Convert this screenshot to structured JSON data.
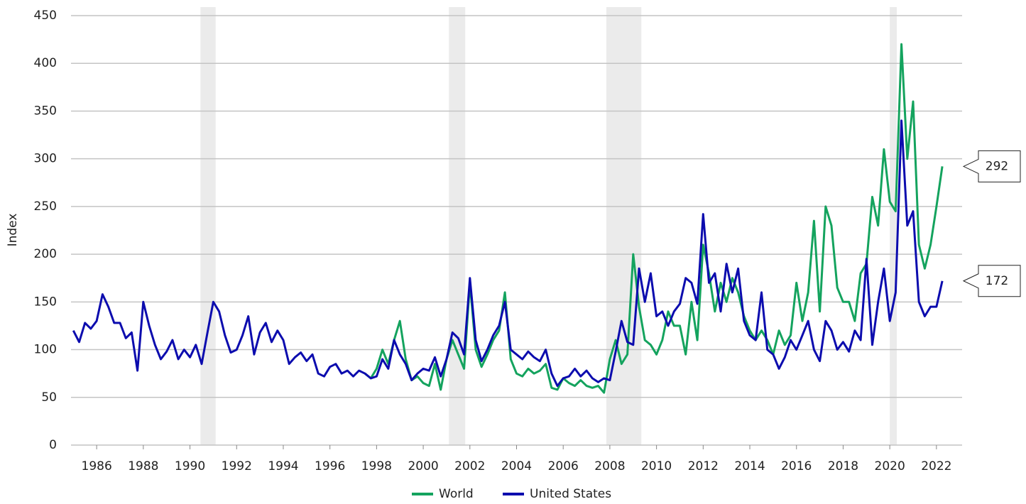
{
  "chart_data": {
    "type": "line",
    "y_label": "Index",
    "x": [
      1985,
      1985.25,
      1985.5,
      1985.75,
      1986,
      1986.25,
      1986.5,
      1986.75,
      1987,
      1987.25,
      1987.5,
      1987.75,
      1988,
      1988.25,
      1988.5,
      1988.75,
      1989,
      1989.25,
      1989.5,
      1989.75,
      1990,
      1990.25,
      1990.5,
      1990.75,
      1991,
      1991.25,
      1991.5,
      1991.75,
      1992,
      1992.25,
      1992.5,
      1992.75,
      1993,
      1993.25,
      1993.5,
      1993.75,
      1994,
      1994.25,
      1994.5,
      1994.75,
      1995,
      1995.25,
      1995.5,
      1995.75,
      1996,
      1996.25,
      1996.5,
      1996.75,
      1997,
      1997.25,
      1997.5,
      1997.75,
      1998,
      1998.25,
      1998.5,
      1998.75,
      1999,
      1999.25,
      1999.5,
      1999.75,
      2000,
      2000.25,
      2000.5,
      2000.75,
      2001,
      2001.25,
      2001.5,
      2001.75,
      2002,
      2002.25,
      2002.5,
      2002.75,
      2003,
      2003.25,
      2003.5,
      2003.75,
      2004,
      2004.25,
      2004.5,
      2004.75,
      2005,
      2005.25,
      2005.5,
      2005.75,
      2006,
      2006.25,
      2006.5,
      2006.75,
      2007,
      2007.25,
      2007.5,
      2007.75,
      2008,
      2008.25,
      2008.5,
      2008.75,
      2009,
      2009.25,
      2009.5,
      2009.75,
      2010,
      2010.25,
      2010.5,
      2010.75,
      2011,
      2011.25,
      2011.5,
      2011.75,
      2012,
      2012.25,
      2012.5,
      2012.75,
      2013,
      2013.25,
      2013.5,
      2013.75,
      2014,
      2014.25,
      2014.5,
      2014.75,
      2015,
      2015.25,
      2015.5,
      2015.75,
      2016,
      2016.25,
      2016.5,
      2016.75,
      2017,
      2017.25,
      2017.5,
      2017.75,
      2018,
      2018.25,
      2018.5,
      2018.75,
      2019,
      2019.25,
      2019.5,
      2019.75,
      2020,
      2020.25,
      2020.5,
      2020.75,
      2021,
      2021.25,
      2021.5,
      2021.75,
      2022,
      2022.25
    ],
    "series": [
      {
        "name": "World",
        "color": "#14a35e",
        "values": [
          null,
          null,
          null,
          null,
          null,
          null,
          null,
          null,
          null,
          null,
          null,
          null,
          null,
          null,
          null,
          null,
          null,
          null,
          null,
          null,
          null,
          null,
          null,
          null,
          null,
          null,
          null,
          null,
          null,
          null,
          null,
          null,
          null,
          null,
          null,
          null,
          null,
          null,
          null,
          null,
          null,
          null,
          null,
          null,
          null,
          null,
          null,
          null,
          null,
          null,
          75,
          70,
          80,
          100,
          85,
          110,
          130,
          90,
          68,
          72,
          65,
          62,
          85,
          58,
          90,
          110,
          95,
          80,
          170,
          100,
          82,
          95,
          110,
          120,
          160,
          90,
          75,
          72,
          80,
          75,
          78,
          85,
          60,
          58,
          70,
          65,
          62,
          68,
          62,
          60,
          62,
          55,
          90,
          110,
          85,
          95,
          200,
          145,
          110,
          105,
          95,
          110,
          140,
          125,
          125,
          95,
          150,
          110,
          210,
          180,
          140,
          170,
          150,
          175,
          160,
          135,
          120,
          110,
          120,
          110,
          95,
          120,
          105,
          115,
          170,
          130,
          160,
          235,
          140,
          250,
          230,
          165,
          150,
          150,
          130,
          180,
          190,
          260,
          230,
          310,
          255,
          245,
          420,
          300,
          360,
          210,
          185,
          210,
          250,
          292
        ]
      },
      {
        "name": "United States",
        "color": "#0c0cae",
        "values": [
          120,
          108,
          128,
          122,
          130,
          158,
          145,
          128,
          128,
          112,
          118,
          78,
          150,
          125,
          105,
          90,
          98,
          110,
          90,
          100,
          92,
          105,
          85,
          118,
          150,
          140,
          115,
          97,
          100,
          115,
          135,
          95,
          118,
          128,
          108,
          120,
          110,
          85,
          92,
          97,
          88,
          95,
          75,
          72,
          82,
          85,
          75,
          78,
          72,
          78,
          75,
          70,
          72,
          90,
          80,
          110,
          95,
          85,
          68,
          75,
          80,
          78,
          92,
          72,
          90,
          118,
          112,
          95,
          175,
          110,
          88,
          100,
          115,
          125,
          150,
          100,
          95,
          90,
          98,
          92,
          88,
          100,
          75,
          62,
          70,
          72,
          80,
          72,
          78,
          70,
          66,
          70,
          68,
          98,
          130,
          108,
          105,
          185,
          150,
          180,
          135,
          140,
          125,
          140,
          148,
          175,
          170,
          148,
          242,
          170,
          180,
          140,
          190,
          160,
          185,
          130,
          115,
          110,
          160,
          100,
          95,
          80,
          92,
          110,
          100,
          115,
          130,
          100,
          88,
          130,
          120,
          100,
          108,
          98,
          120,
          110,
          195,
          105,
          150,
          185,
          130,
          160,
          340,
          230,
          245,
          150,
          135,
          145,
          145,
          172
        ]
      }
    ],
    "xlim": [
      1984.9,
      2023.1
    ],
    "ylim": [
      0,
      450
    ],
    "xticks": [
      1986,
      1988,
      1990,
      1992,
      1994,
      1996,
      1998,
      2000,
      2002,
      2004,
      2006,
      2008,
      2010,
      2012,
      2014,
      2016,
      2018,
      2020,
      2022
    ],
    "yticks": [
      0,
      50,
      100,
      150,
      200,
      250,
      300,
      350,
      400,
      450
    ],
    "grid": true,
    "shaded_periods": [
      [
        1990.45,
        1991.1
      ],
      [
        2001.1,
        2001.8
      ],
      [
        2007.85,
        2009.35
      ],
      [
        2020.0,
        2020.3
      ]
    ],
    "legend": "bottom"
  }
}
